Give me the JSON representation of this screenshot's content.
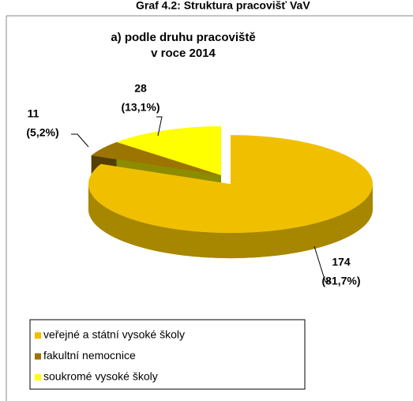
{
  "chart_data": {
    "type": "pie3d",
    "header": "Graf 4.2: Struktura pracovišť VaV",
    "title_lines": [
      "a) podle druhu pracoviště",
      "v roce 2014"
    ],
    "categories": [
      "veřejné a státní vysoké školy",
      "fakultní nemocnice",
      "soukromé vysoké školy"
    ],
    "values": [
      174,
      11,
      28
    ],
    "percentages": [
      81.7,
      5.2,
      13.1
    ],
    "percentage_labels": [
      "(81,7%)",
      "(5,2%)",
      "(13,1%)"
    ],
    "colors": [
      "#f0c000",
      "#9c7400",
      "#ffff00"
    ],
    "legend": "bottom"
  }
}
